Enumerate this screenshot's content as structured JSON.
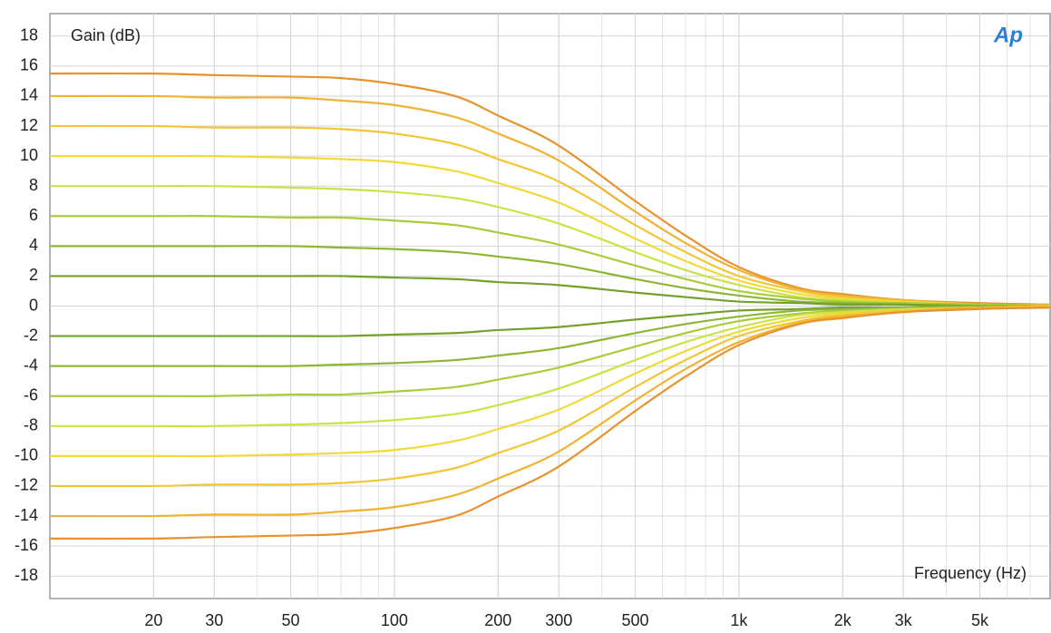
{
  "chart_data": {
    "type": "line",
    "ylabel": "Gain (dB)",
    "xlabel": "Frequency (Hz)",
    "logo": "Ap",
    "xscale": "log",
    "grid": true,
    "xlim": [
      10,
      8000
    ],
    "ylim": [
      -19.5,
      19.5
    ],
    "xticks": [
      20,
      30,
      50,
      100,
      200,
      300,
      500,
      {
        "value": 1000,
        "label": "1k"
      },
      {
        "value": 2000,
        "label": "2k"
      },
      {
        "value": 3000,
        "label": "3k"
      },
      {
        "value": 5000,
        "label": "5k"
      }
    ],
    "yticks": [
      18,
      16,
      14,
      12,
      10,
      8,
      6,
      4,
      2,
      0,
      -2,
      -4,
      -6,
      -8,
      -10,
      -12,
      -14,
      -16,
      -18
    ],
    "x": [
      10,
      20,
      30,
      50,
      70,
      100,
      150,
      200,
      300,
      500,
      700,
      1000,
      1500,
      2000,
      3000,
      5000,
      8000
    ],
    "series": [
      {
        "color": "#e8922e",
        "values": [
          15.5,
          15.5,
          15.4,
          15.3,
          15.2,
          14.8,
          14.0,
          12.7,
          10.7,
          7.0,
          4.7,
          2.6,
          1.2,
          0.8,
          0.4,
          0.2,
          0.1
        ]
      },
      {
        "color": "#f0b232",
        "values": [
          14,
          14,
          13.9,
          13.9,
          13.7,
          13.4,
          12.6,
          11.5,
          9.7,
          6.3,
          4.2,
          2.4,
          1.1,
          0.7,
          0.4,
          0.1,
          0.1
        ]
      },
      {
        "color": "#f2c634",
        "values": [
          12,
          12,
          11.9,
          11.9,
          11.8,
          11.5,
          10.8,
          9.8,
          8.3,
          5.4,
          3.6,
          2.0,
          1.0,
          0.6,
          0.3,
          0.1,
          0
        ]
      },
      {
        "color": "#f2da36",
        "values": [
          10,
          10,
          10,
          9.9,
          9.8,
          9.6,
          9.0,
          8.2,
          6.9,
          4.5,
          3.0,
          1.7,
          0.8,
          0.5,
          0.3,
          0.1,
          0
        ]
      },
      {
        "color": "#cde244",
        "values": [
          8,
          8,
          8,
          7.9,
          7.8,
          7.6,
          7.2,
          6.6,
          5.5,
          3.6,
          2.4,
          1.4,
          0.6,
          0.4,
          0.2,
          0.1,
          0
        ]
      },
      {
        "color": "#a8cc3a",
        "values": [
          6,
          6,
          6,
          5.9,
          5.9,
          5.7,
          5.4,
          4.9,
          4.1,
          2.7,
          1.8,
          1.0,
          0.5,
          0.3,
          0.2,
          0.1,
          0
        ]
      },
      {
        "color": "#8db636",
        "values": [
          4,
          4,
          4,
          4,
          3.9,
          3.8,
          3.6,
          3.3,
          2.8,
          1.8,
          1.2,
          0.7,
          0.3,
          0.2,
          0.1,
          0,
          0
        ]
      },
      {
        "color": "#76a02c",
        "values": [
          2,
          2,
          2,
          2,
          2,
          1.9,
          1.8,
          1.6,
          1.4,
          0.9,
          0.6,
          0.3,
          0.2,
          0.1,
          0.1,
          0,
          0
        ]
      },
      {
        "color": "#76a02c",
        "values": [
          -2,
          -2,
          -2,
          -2,
          -2,
          -1.9,
          -1.8,
          -1.6,
          -1.4,
          -0.9,
          -0.6,
          -0.3,
          -0.2,
          -0.1,
          -0.1,
          0,
          0
        ]
      },
      {
        "color": "#8db636",
        "values": [
          -4,
          -4,
          -4,
          -4,
          -3.9,
          -3.8,
          -3.6,
          -3.3,
          -2.8,
          -1.8,
          -1.2,
          -0.7,
          -0.3,
          -0.2,
          -0.1,
          0,
          0
        ]
      },
      {
        "color": "#a8cc3a",
        "values": [
          -6,
          -6,
          -6,
          -5.9,
          -5.9,
          -5.7,
          -5.4,
          -4.9,
          -4.1,
          -2.7,
          -1.8,
          -1.0,
          -0.5,
          -0.3,
          -0.2,
          -0.1,
          0
        ]
      },
      {
        "color": "#cde244",
        "values": [
          -8,
          -8,
          -8,
          -7.9,
          -7.8,
          -7.6,
          -7.2,
          -6.6,
          -5.5,
          -3.6,
          -2.4,
          -1.4,
          -0.6,
          -0.4,
          -0.2,
          -0.1,
          0
        ]
      },
      {
        "color": "#f2da36",
        "values": [
          -10,
          -10,
          -10,
          -9.9,
          -9.8,
          -9.6,
          -9.0,
          -8.2,
          -6.9,
          -4.5,
          -3.0,
          -1.7,
          -0.8,
          -0.5,
          -0.3,
          -0.1,
          0
        ]
      },
      {
        "color": "#f2c634",
        "values": [
          -12,
          -12,
          -11.9,
          -11.9,
          -11.8,
          -11.5,
          -10.8,
          -9.8,
          -8.3,
          -5.4,
          -3.6,
          -2.0,
          -1.0,
          -0.6,
          -0.3,
          -0.1,
          0
        ]
      },
      {
        "color": "#f0b232",
        "values": [
          -14,
          -14,
          -13.9,
          -13.9,
          -13.7,
          -13.4,
          -12.6,
          -11.5,
          -9.7,
          -6.3,
          -4.2,
          -2.4,
          -1.1,
          -0.7,
          -0.4,
          -0.1,
          -0.1
        ]
      },
      {
        "color": "#e8922e",
        "values": [
          -15.5,
          -15.5,
          -15.4,
          -15.3,
          -15.2,
          -14.8,
          -14.0,
          -12.7,
          -10.7,
          -7.0,
          -4.7,
          -2.6,
          -1.2,
          -0.8,
          -0.4,
          -0.2,
          -0.1
        ]
      }
    ]
  }
}
